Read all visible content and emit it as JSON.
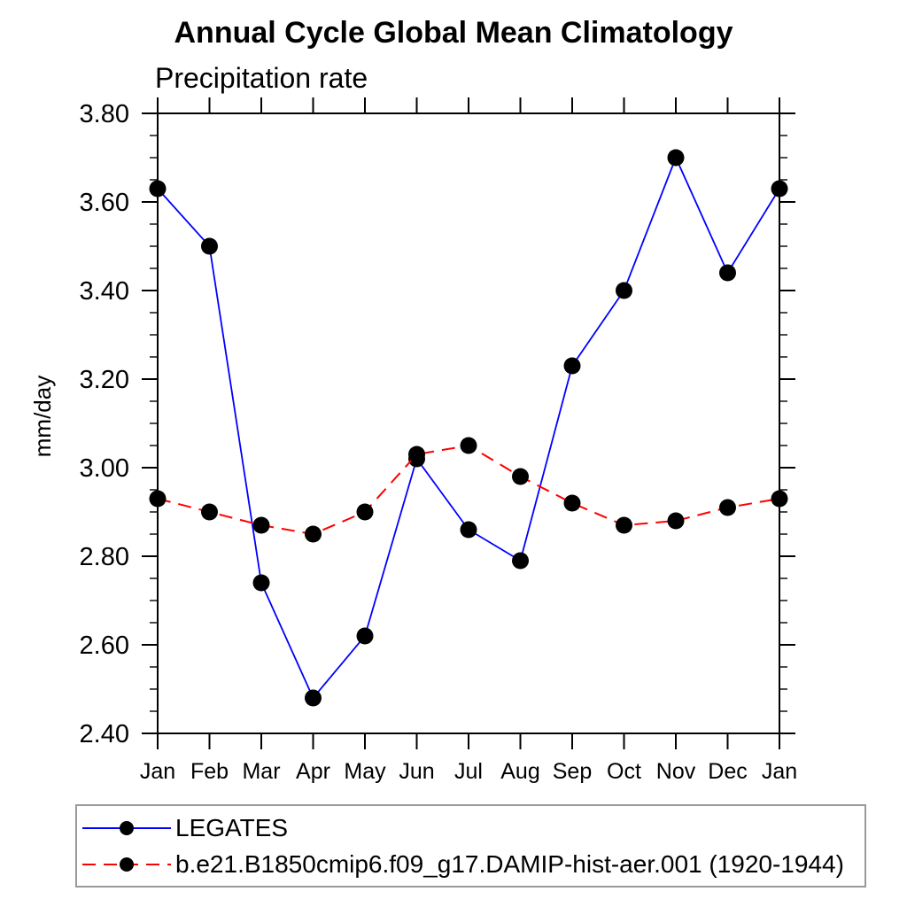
{
  "chart_data": {
    "type": "line",
    "title": "Annual Cycle Global Mean Climatology",
    "subtitle": "Precipitation rate",
    "ylabel": "mm/day",
    "categories": [
      "Jan",
      "Feb",
      "Mar",
      "Apr",
      "May",
      "Jun",
      "Jul",
      "Aug",
      "Sep",
      "Oct",
      "Nov",
      "Dec",
      "Jan"
    ],
    "ylim": [
      2.4,
      3.8
    ],
    "ytick_step": 0.2,
    "yminor_step": 0.05,
    "ytick_decimals": 2,
    "grid": false,
    "legend_position": "bottom-left-box",
    "series": [
      {
        "name": "LEGATES",
        "color": "#0000ff",
        "style": "solid",
        "marker": "circle",
        "marker_color": "#000000",
        "values": [
          3.63,
          3.5,
          2.74,
          2.48,
          2.62,
          3.02,
          2.86,
          2.79,
          3.23,
          3.4,
          3.7,
          3.44,
          3.63
        ]
      },
      {
        "name": "b.e21.B1850cmip6.f09_g17.DAMIP-hist-aer.001 (1920-1944)",
        "color": "#ff0000",
        "style": "dashed",
        "marker": "circle",
        "marker_color": "#000000",
        "values": [
          2.93,
          2.9,
          2.87,
          2.85,
          2.9,
          3.03,
          3.05,
          2.98,
          2.92,
          2.87,
          2.88,
          2.91,
          2.93
        ]
      }
    ]
  }
}
